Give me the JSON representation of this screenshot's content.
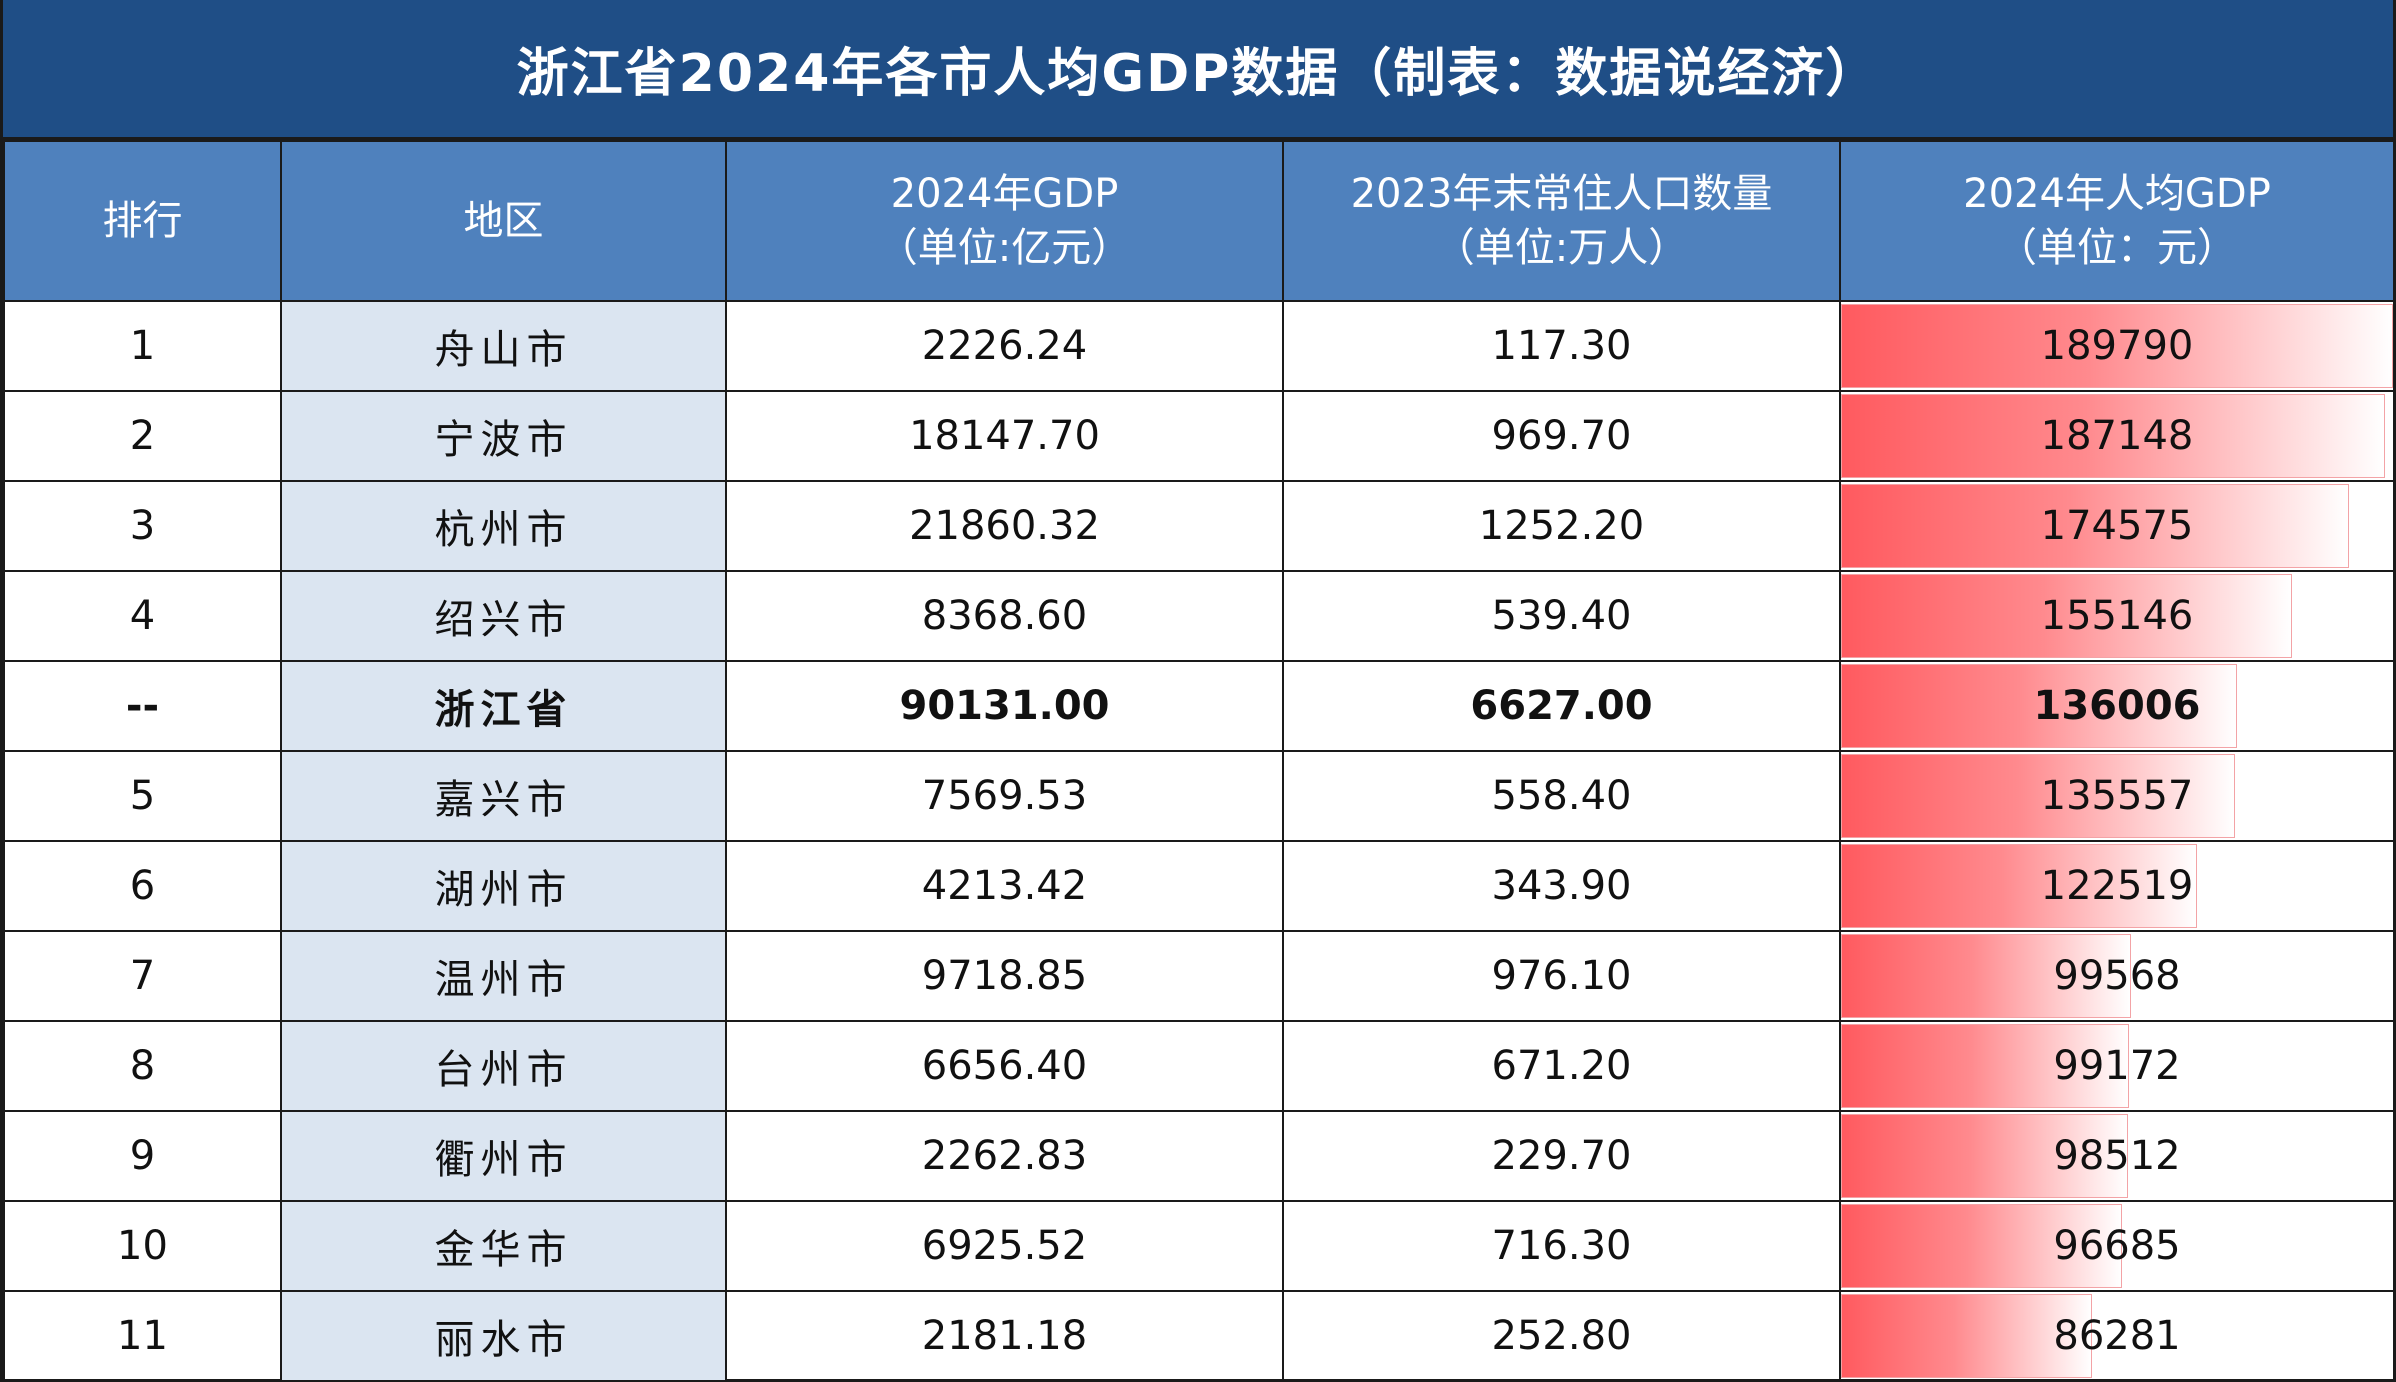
{
  "title": "浙江省2024年各市人均GDP数据（制表：数据说经济）",
  "columns": [
    {
      "line1": "排行",
      "line2": ""
    },
    {
      "line1": "地区",
      "line2": ""
    },
    {
      "line1": "2024年GDP",
      "line2": "（单位:亿元）"
    },
    {
      "line1": "2023年末常住人口数量",
      "line2": "（单位:万人）"
    },
    {
      "line1": "2024年人均GDP",
      "line2": "（单位：元）"
    }
  ],
  "rows": [
    {
      "rank": "1",
      "region": "舟山市",
      "gdp": "2226.24",
      "population": "117.30",
      "per_capita": "189790",
      "per_capita_num": 189790
    },
    {
      "rank": "2",
      "region": "宁波市",
      "gdp": "18147.70",
      "population": "969.70",
      "per_capita": "187148",
      "per_capita_num": 187148
    },
    {
      "rank": "3",
      "region": "杭州市",
      "gdp": "21860.32",
      "population": "1252.20",
      "per_capita": "174575",
      "per_capita_num": 174575
    },
    {
      "rank": "4",
      "region": "绍兴市",
      "gdp": "8368.60",
      "population": "539.40",
      "per_capita": "155146",
      "per_capita_num": 155146
    },
    {
      "rank": "--",
      "region": "浙江省",
      "gdp": "90131.00",
      "population": "6627.00",
      "per_capita": "136006",
      "per_capita_num": 136006,
      "is_total": true
    },
    {
      "rank": "5",
      "region": "嘉兴市",
      "gdp": "7569.53",
      "population": "558.40",
      "per_capita": "135557",
      "per_capita_num": 135557
    },
    {
      "rank": "6",
      "region": "湖州市",
      "gdp": "4213.42",
      "population": "343.90",
      "per_capita": "122519",
      "per_capita_num": 122519
    },
    {
      "rank": "7",
      "region": "温州市",
      "gdp": "9718.85",
      "population": "976.10",
      "per_capita": "99568",
      "per_capita_num": 99568
    },
    {
      "rank": "8",
      "region": "台州市",
      "gdp": "6656.40",
      "population": "671.20",
      "per_capita": "99172",
      "per_capita_num": 99172
    },
    {
      "rank": "9",
      "region": "衢州市",
      "gdp": "2262.83",
      "population": "229.70",
      "per_capita": "98512",
      "per_capita_num": 98512
    },
    {
      "rank": "10",
      "region": "金华市",
      "gdp": "6925.52",
      "population": "716.30",
      "per_capita": "96685",
      "per_capita_num": 96685
    },
    {
      "rank": "11",
      "region": "丽水市",
      "gdp": "2181.18",
      "population": "252.80",
      "per_capita": "86281",
      "per_capita_num": 86281
    }
  ],
  "colors": {
    "title_bg": "#1f4e86",
    "header_bg": "#4f81bd",
    "region_shade": "#dbe5f1",
    "bar_color": "#ff5a5f"
  }
}
